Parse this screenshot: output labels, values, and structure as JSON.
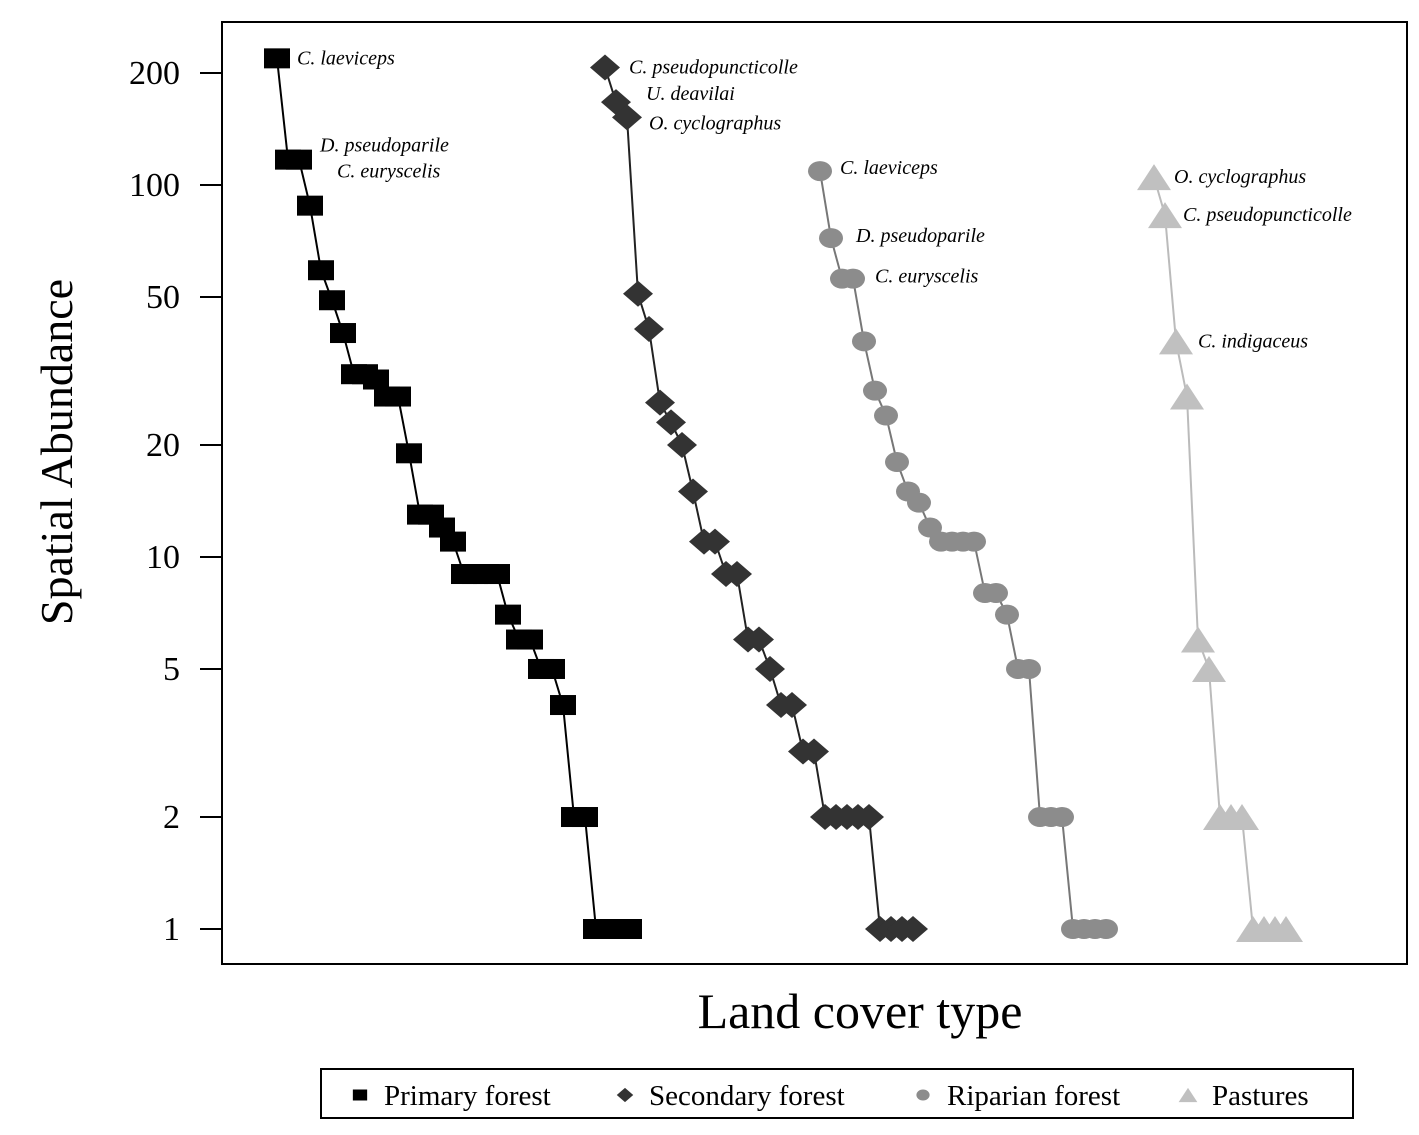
{
  "chart_data": {
    "type": "scatter",
    "title": "",
    "xlabel": "Land cover type",
    "ylabel": "Spatial Abundance",
    "yscale": "log",
    "ylim": [
      0.9,
      250
    ],
    "yticks": [
      1,
      2,
      5,
      10,
      20,
      50,
      100,
      200
    ],
    "ytick_labels": [
      "1",
      "2",
      "5",
      "10",
      "20",
      "50",
      "100",
      "200"
    ],
    "grid": false,
    "legend_placement": "bottom",
    "series": [
      {
        "name": "Primary forest",
        "marker": "square",
        "color": "#000000",
        "values": [
          219,
          117,
          117,
          88,
          59,
          49,
          40,
          31,
          31,
          30,
          27,
          27,
          19,
          13,
          13,
          12,
          11,
          9,
          9,
          9,
          9,
          7,
          6,
          6,
          5,
          5,
          4,
          2,
          2,
          1,
          1,
          1,
          1
        ],
        "annotations": [
          {
            "index": 0,
            "text": "C. laeviceps"
          },
          {
            "index": 1,
            "text": "D. pseudoparile"
          },
          {
            "index": 2,
            "text": "C. euryscelis"
          }
        ]
      },
      {
        "name": "Secondary forest",
        "marker": "diamond",
        "color": "#333333",
        "values": [
          207,
          167,
          152,
          51,
          41,
          26,
          23,
          20,
          15,
          11,
          11,
          9,
          9,
          6,
          6,
          5,
          4,
          4,
          3,
          3,
          2,
          2,
          2,
          2,
          2,
          1,
          1,
          1,
          1
        ],
        "annotations": [
          {
            "index": 0,
            "text": "C. pseudopuncticolle"
          },
          {
            "index": 1,
            "text": "U. deavilai"
          },
          {
            "index": 2,
            "text": "O. cyclographus"
          }
        ]
      },
      {
        "name": "Riparian forest",
        "marker": "circle",
        "color": "#8c8c8c",
        "values": [
          109,
          72,
          56,
          56,
          38,
          28,
          24,
          18,
          15,
          14,
          12,
          11,
          11,
          11,
          11,
          8,
          8,
          7,
          5,
          5,
          2,
          2,
          2,
          1,
          1,
          1,
          1
        ],
        "annotations": [
          {
            "index": 0,
            "text": "C. laeviceps"
          },
          {
            "index": 1,
            "text": "D. pseudoparile"
          },
          {
            "index": 3,
            "text": "C. euryscelis"
          }
        ]
      },
      {
        "name": "Pastures",
        "marker": "triangle",
        "color": "#c0c0c0",
        "values": [
          105,
          83,
          38,
          27,
          6,
          5,
          2,
          2,
          2,
          1,
          1,
          1,
          1
        ],
        "annotations": [
          {
            "index": 0,
            "text": "O. cyclographus"
          },
          {
            "index": 1,
            "text": "C. pseudopuncticolle"
          },
          {
            "index": 2,
            "text": "C. indigaceus"
          }
        ]
      }
    ]
  }
}
